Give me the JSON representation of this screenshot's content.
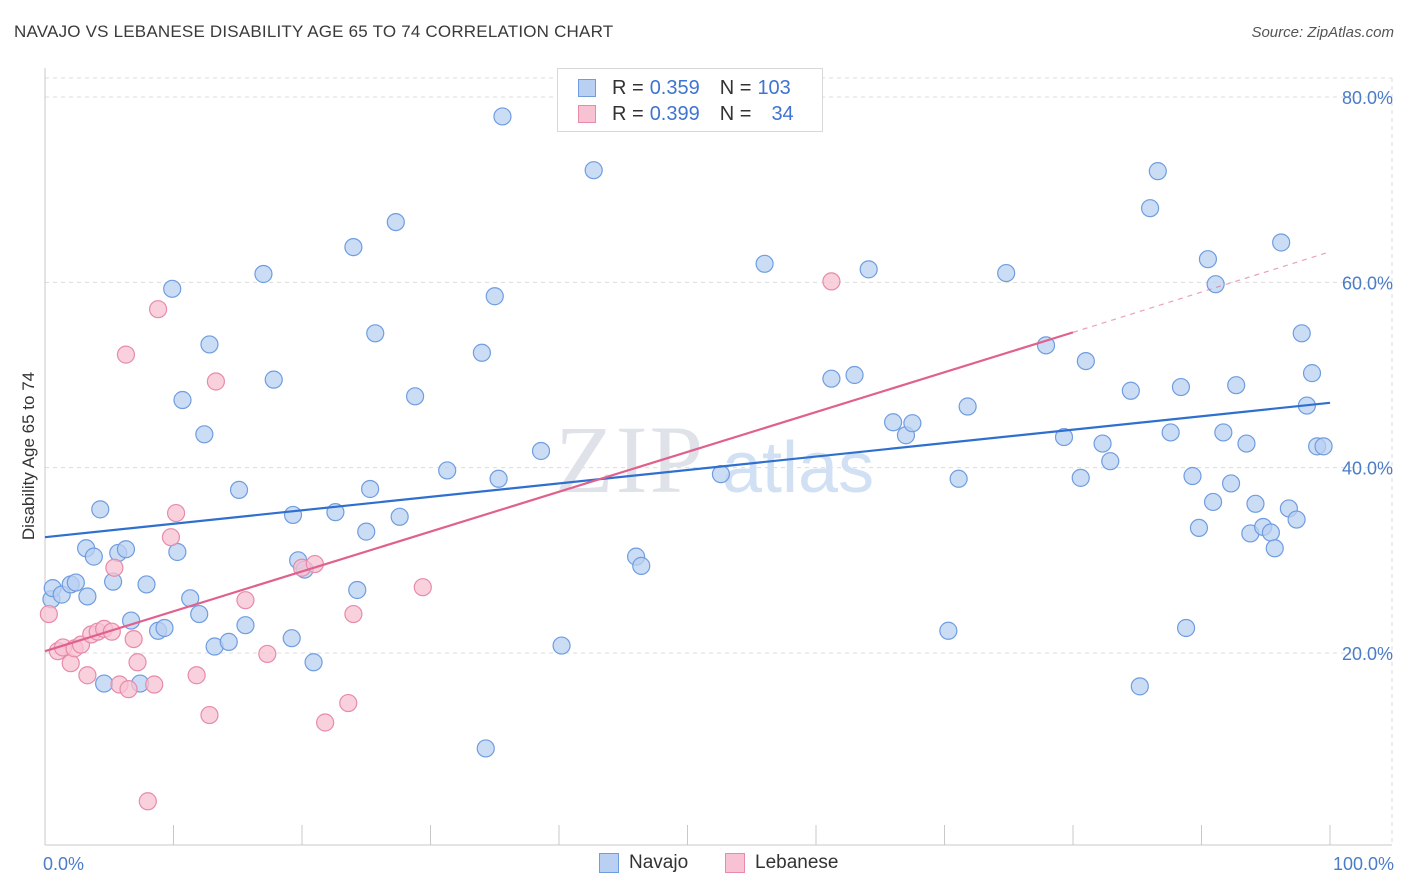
{
  "title": "NAVAJO VS LEBANESE DISABILITY AGE 65 TO 74 CORRELATION CHART",
  "source": "Source: ZipAtlas.com",
  "watermark": {
    "zip": "ZIP",
    "atlas": "atlas"
  },
  "colors": {
    "navajo_fill": "#b9d0f2",
    "navajo_stroke": "#6f9de0",
    "navajo_line": "#2f6fce",
    "lebanese_fill": "#f7c2d2",
    "lebanese_stroke": "#e88aa9",
    "lebanese_line": "#e0608e",
    "tick_label": "#4a7cc7",
    "grid": "#dcdcdc"
  },
  "legend": {
    "rows": [
      {
        "r_label": "R =",
        "r_value": "0.359",
        "n_label": "N =",
        "n_value": "103"
      },
      {
        "r_label": "R =",
        "r_value": "0.399",
        "n_label": "N =",
        "n_value": "34"
      }
    ]
  },
  "bottom_legend": {
    "navajo": "Navajo",
    "lebanese": "Lebanese"
  },
  "chart_data": {
    "type": "scatter",
    "title": "NAVAJO VS LEBANESE DISABILITY AGE 65 TO 74 CORRELATION CHART",
    "xlabel": "",
    "ylabel": "Disability Age 65 to 74",
    "xlim": [
      0,
      100
    ],
    "ylim": [
      0,
      83
    ],
    "x_tick_labels": [
      "0.0%",
      "100.0%"
    ],
    "y_ticks": [
      20,
      40,
      60,
      80
    ],
    "y_tick_labels": [
      "20.0%",
      "40.0%",
      "60.0%",
      "80.0%"
    ],
    "grid": true,
    "legend_position": "top-center",
    "series": [
      {
        "name": "Navajo",
        "trend": {
          "x": [
            0,
            100
          ],
          "y": [
            32.5,
            47.0
          ],
          "style": "solid"
        },
        "points": [
          [
            0.5,
            25.8
          ],
          [
            0.6,
            27
          ],
          [
            1.3,
            26.3
          ],
          [
            2,
            27.4
          ],
          [
            2.4,
            27.6
          ],
          [
            3.2,
            31.3
          ],
          [
            3.3,
            26.1
          ],
          [
            3.8,
            30.4
          ],
          [
            4.3,
            35.5
          ],
          [
            4.6,
            16.7
          ],
          [
            5.3,
            27.7
          ],
          [
            5.7,
            30.8
          ],
          [
            6.3,
            31.2
          ],
          [
            6.7,
            23.5
          ],
          [
            7.4,
            16.7
          ],
          [
            7.9,
            27.4
          ],
          [
            8.8,
            22.4
          ],
          [
            9.3,
            22.7
          ],
          [
            9.9,
            59.3
          ],
          [
            10.3,
            30.9
          ],
          [
            10.7,
            47.3
          ],
          [
            11.3,
            25.9
          ],
          [
            12.0,
            24.2
          ],
          [
            12.4,
            43.6
          ],
          [
            12.8,
            53.3
          ],
          [
            13.2,
            20.7
          ],
          [
            14.3,
            21.2
          ],
          [
            15.1,
            37.6
          ],
          [
            15.6,
            23.0
          ],
          [
            17.0,
            60.9
          ],
          [
            17.8,
            49.5
          ],
          [
            19.2,
            21.6
          ],
          [
            19.3,
            34.9
          ],
          [
            19.7,
            30.0
          ],
          [
            20.2,
            29.0
          ],
          [
            20.9,
            19.0
          ],
          [
            22.6,
            35.2
          ],
          [
            24.0,
            63.8
          ],
          [
            24.3,
            26.8
          ],
          [
            25.0,
            33.1
          ],
          [
            25.3,
            37.7
          ],
          [
            25.7,
            54.5
          ],
          [
            27.3,
            66.5
          ],
          [
            27.6,
            34.7
          ],
          [
            28.8,
            47.7
          ],
          [
            31.3,
            39.7
          ],
          [
            34.0,
            52.4
          ],
          [
            35.0,
            58.5
          ],
          [
            35.3,
            38.8
          ],
          [
            35.6,
            77.9
          ],
          [
            34.3,
            9.7
          ],
          [
            38.6,
            41.8
          ],
          [
            40.2,
            20.8
          ],
          [
            42.7,
            72.1
          ],
          [
            46.0,
            30.4
          ],
          [
            46.4,
            29.4
          ],
          [
            52.6,
            39.3
          ],
          [
            56.0,
            62.0
          ],
          [
            61.2,
            49.6
          ],
          [
            63.0,
            50.0
          ],
          [
            64.1,
            61.4
          ],
          [
            66.0,
            44.9
          ],
          [
            67.0,
            43.5
          ],
          [
            67.5,
            44.8
          ],
          [
            70.3,
            22.4
          ],
          [
            71.1,
            38.8
          ],
          [
            71.8,
            46.6
          ],
          [
            74.8,
            61.0
          ],
          [
            77.9,
            53.2
          ],
          [
            79.3,
            43.3
          ],
          [
            80.6,
            38.9
          ],
          [
            81.0,
            51.5
          ],
          [
            82.3,
            42.6
          ],
          [
            82.9,
            40.7
          ],
          [
            84.5,
            48.3
          ],
          [
            85.2,
            16.4
          ],
          [
            86.0,
            68.0
          ],
          [
            86.6,
            72.0
          ],
          [
            87.6,
            43.8
          ],
          [
            88.4,
            48.7
          ],
          [
            88.8,
            22.7
          ],
          [
            89.3,
            39.1
          ],
          [
            89.8,
            33.5
          ],
          [
            90.5,
            62.5
          ],
          [
            90.9,
            36.3
          ],
          [
            91.1,
            59.8
          ],
          [
            91.7,
            43.8
          ],
          [
            92.3,
            38.3
          ],
          [
            92.7,
            48.9
          ],
          [
            93.5,
            42.6
          ],
          [
            93.8,
            32.9
          ],
          [
            94.2,
            36.1
          ],
          [
            94.8,
            33.6
          ],
          [
            95.4,
            33.0
          ],
          [
            95.7,
            31.3
          ],
          [
            96.2,
            64.3
          ],
          [
            96.8,
            35.6
          ],
          [
            97.4,
            34.4
          ],
          [
            97.8,
            54.5
          ],
          [
            98.2,
            46.7
          ],
          [
            98.6,
            50.2
          ],
          [
            99.0,
            42.3
          ],
          [
            99.5,
            42.3
          ]
        ]
      },
      {
        "name": "Lebanese",
        "trend": {
          "x": [
            0,
            80
          ],
          "y": [
            20.2,
            54.6
          ],
          "style": "solid",
          "dashed_to": [
            100,
            63.3
          ]
        },
        "points": [
          [
            0.3,
            24.2
          ],
          [
            1.0,
            20.2
          ],
          [
            1.4,
            20.6
          ],
          [
            2.0,
            18.9
          ],
          [
            2.3,
            20.5
          ],
          [
            2.8,
            20.9
          ],
          [
            3.3,
            17.6
          ],
          [
            3.6,
            22.0
          ],
          [
            4.1,
            22.3
          ],
          [
            4.6,
            22.6
          ],
          [
            5.2,
            22.3
          ],
          [
            5.4,
            29.2
          ],
          [
            5.8,
            16.6
          ],
          [
            6.3,
            52.2
          ],
          [
            6.5,
            16.1
          ],
          [
            6.9,
            21.5
          ],
          [
            7.2,
            19.0
          ],
          [
            8.0,
            4.0
          ],
          [
            8.5,
            16.6
          ],
          [
            8.8,
            57.1
          ],
          [
            9.8,
            32.5
          ],
          [
            10.2,
            35.1
          ],
          [
            11.8,
            17.6
          ],
          [
            12.8,
            13.3
          ],
          [
            13.3,
            49.3
          ],
          [
            15.6,
            25.7
          ],
          [
            17.3,
            19.9
          ],
          [
            20.0,
            29.2
          ],
          [
            21.0,
            29.6
          ],
          [
            21.8,
            12.5
          ],
          [
            23.6,
            14.6
          ],
          [
            24.0,
            24.2
          ],
          [
            29.4,
            27.1
          ],
          [
            61.2,
            60.1
          ]
        ]
      }
    ]
  }
}
